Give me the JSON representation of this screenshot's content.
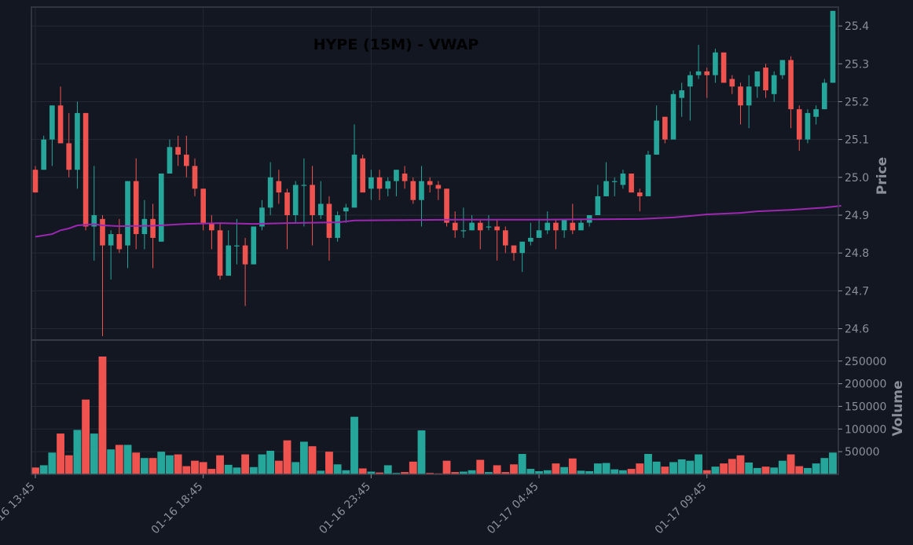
{
  "colors": {
    "background": "#131722",
    "panel_border": "#3b3f4a",
    "grid": "#242834",
    "up": "#26a69a",
    "down": "#ef5350",
    "vwap": "#9c27b0",
    "text": "#8a8f9a",
    "title": "#000000"
  },
  "chart_data": {
    "type": "candlestick",
    "title": "HYPE (15M) - VWAP",
    "price_axis": {
      "label": "Price",
      "ylim": [
        24.57,
        25.45
      ],
      "ticks": [
        "24.6",
        "24.7",
        "24.8",
        "24.9",
        "25.0",
        "25.1",
        "25.2",
        "25.3",
        "25.4"
      ]
    },
    "volume_axis": {
      "label": "Volume",
      "ylim": [
        0,
        260000
      ],
      "ticks": [
        "50000",
        "100000",
        "150000",
        "200000",
        "250000"
      ]
    },
    "x_ticks": [
      {
        "index": 0,
        "label": "01-16 13:45"
      },
      {
        "index": 20,
        "label": "01-16 18:45"
      },
      {
        "index": 40,
        "label": "01-16 23:45"
      },
      {
        "index": 60,
        "label": "01-17 04:45"
      },
      {
        "index": 80,
        "label": "01-17 09:45"
      }
    ],
    "grid": true,
    "candles": [
      [
        25.02,
        24.96,
        25.03,
        24.96
      ],
      [
        25.02,
        25.1,
        25.11,
        25.02
      ],
      [
        25.1,
        25.19,
        25.19,
        25.03
      ],
      [
        25.19,
        25.09,
        25.24,
        25.09
      ],
      [
        25.09,
        25.02,
        25.17,
        25.0
      ],
      [
        25.02,
        25.17,
        25.2,
        24.97
      ],
      [
        25.17,
        24.87,
        25.17,
        24.86
      ],
      [
        24.87,
        24.9,
        25.03,
        24.78
      ],
      [
        24.89,
        24.82,
        24.9,
        24.58
      ],
      [
        24.82,
        24.85,
        24.86,
        24.73
      ],
      [
        24.85,
        24.81,
        24.89,
        24.8
      ],
      [
        24.82,
        24.99,
        24.99,
        24.76
      ],
      [
        24.99,
        24.85,
        25.05,
        24.81
      ],
      [
        24.85,
        24.89,
        24.94,
        24.81
      ],
      [
        24.89,
        24.84,
        24.93,
        24.76
      ],
      [
        24.83,
        25.01,
        25.01,
        24.83
      ],
      [
        25.01,
        25.08,
        25.1,
        25.01
      ],
      [
        25.08,
        25.06,
        25.11,
        25.03
      ],
      [
        25.06,
        25.03,
        25.11,
        25.0
      ],
      [
        25.03,
        24.97,
        25.05,
        24.95
      ],
      [
        24.97,
        24.88,
        24.97,
        24.86
      ],
      [
        24.88,
        24.86,
        24.9,
        24.81
      ],
      [
        24.86,
        24.74,
        24.88,
        24.73
      ],
      [
        24.74,
        24.82,
        24.86,
        24.74
      ],
      [
        24.82,
        24.82,
        24.89,
        24.77
      ],
      [
        24.82,
        24.77,
        24.84,
        24.66
      ],
      [
        24.77,
        24.87,
        24.87,
        24.77
      ],
      [
        24.87,
        24.92,
        24.94,
        24.86
      ],
      [
        24.92,
        25.0,
        25.04,
        24.9
      ],
      [
        24.99,
        24.96,
        25.02,
        24.93
      ],
      [
        24.96,
        24.9,
        24.97,
        24.81
      ],
      [
        24.9,
        24.98,
        24.99,
        24.88
      ],
      [
        24.98,
        24.98,
        25.05,
        24.87
      ],
      [
        24.98,
        24.9,
        25.03,
        24.82
      ],
      [
        24.9,
        24.93,
        24.99,
        24.89
      ],
      [
        24.93,
        24.84,
        24.95,
        24.78
      ],
      [
        24.84,
        24.9,
        24.91,
        24.83
      ],
      [
        24.91,
        24.92,
        24.93,
        24.88
      ],
      [
        24.92,
        25.06,
        25.14,
        24.92
      ],
      [
        25.05,
        24.96,
        25.06,
        24.96
      ],
      [
        24.97,
        25.0,
        25.02,
        24.94
      ],
      [
        25.0,
        24.97,
        25.02,
        24.94
      ],
      [
        24.97,
        24.99,
        25.0,
        24.95
      ],
      [
        24.99,
        25.02,
        25.02,
        24.95
      ],
      [
        25.01,
        24.99,
        25.03,
        24.97
      ],
      [
        24.99,
        24.94,
        25.0,
        24.93
      ],
      [
        24.94,
        24.99,
        25.03,
        24.87
      ],
      [
        24.99,
        24.98,
        25.0,
        24.96
      ],
      [
        24.98,
        24.97,
        24.99,
        24.94
      ],
      [
        24.97,
        24.88,
        24.97,
        24.87
      ],
      [
        24.88,
        24.86,
        24.91,
        24.84
      ],
      [
        24.86,
        24.86,
        24.92,
        24.84
      ],
      [
        24.86,
        24.88,
        24.9,
        24.86
      ],
      [
        24.88,
        24.86,
        24.89,
        24.81
      ],
      [
        24.87,
        24.87,
        24.9,
        24.86
      ],
      [
        24.87,
        24.86,
        24.89,
        24.78
      ],
      [
        24.86,
        24.82,
        24.87,
        24.8
      ],
      [
        24.82,
        24.8,
        24.82,
        24.78
      ],
      [
        24.8,
        24.83,
        24.83,
        24.75
      ],
      [
        24.83,
        24.84,
        24.88,
        24.82
      ],
      [
        24.84,
        24.86,
        24.89,
        24.85
      ],
      [
        24.86,
        24.88,
        24.91,
        24.85
      ],
      [
        24.88,
        24.86,
        24.89,
        24.81
      ],
      [
        24.86,
        24.89,
        24.89,
        24.84
      ],
      [
        24.88,
        24.86,
        24.93,
        24.85
      ],
      [
        24.86,
        24.88,
        24.89,
        24.86
      ],
      [
        24.88,
        24.9,
        24.9,
        24.87
      ],
      [
        24.9,
        24.95,
        24.98,
        24.9
      ],
      [
        24.95,
        24.99,
        25.04,
        24.95
      ],
      [
        24.99,
        24.99,
        25.0,
        24.95
      ],
      [
        24.98,
        25.01,
        25.02,
        24.97
      ],
      [
        25.01,
        24.96,
        25.01,
        24.96
      ],
      [
        24.96,
        24.95,
        24.97,
        24.91
      ],
      [
        24.95,
        25.06,
        25.07,
        24.95
      ],
      [
        25.06,
        25.15,
        25.19,
        25.06
      ],
      [
        25.16,
        25.1,
        25.16,
        25.09
      ],
      [
        25.1,
        25.22,
        25.23,
        25.1
      ],
      [
        25.21,
        25.23,
        25.25,
        25.16
      ],
      [
        25.24,
        25.27,
        25.28,
        25.15
      ],
      [
        25.27,
        25.28,
        25.35,
        25.26
      ],
      [
        25.28,
        25.27,
        25.29,
        25.21
      ],
      [
        25.27,
        25.33,
        25.34,
        25.25
      ],
      [
        25.33,
        25.25,
        25.33,
        25.25
      ],
      [
        25.26,
        25.24,
        25.27,
        25.22
      ],
      [
        25.24,
        25.19,
        25.25,
        25.14
      ],
      [
        25.19,
        25.24,
        25.27,
        25.13
      ],
      [
        25.24,
        25.28,
        25.28,
        25.21
      ],
      [
        25.29,
        25.23,
        25.3,
        25.21
      ],
      [
        25.22,
        25.27,
        25.28,
        25.2
      ],
      [
        25.27,
        25.31,
        25.31,
        25.26
      ],
      [
        25.31,
        25.18,
        25.32,
        25.13
      ],
      [
        25.18,
        25.1,
        25.19,
        25.07
      ],
      [
        25.1,
        25.17,
        25.18,
        25.09
      ],
      [
        25.16,
        25.18,
        25.19,
        25.14
      ],
      [
        25.18,
        25.25,
        25.26,
        25.18
      ],
      [
        25.25,
        25.44,
        25.44,
        25.25
      ]
    ],
    "volume": [
      15000,
      20000,
      48000,
      90000,
      42000,
      98000,
      165000,
      90000,
      260000,
      55000,
      65000,
      65000,
      48000,
      36000,
      36000,
      50000,
      42000,
      44000,
      18000,
      30000,
      27000,
      12000,
      42000,
      21000,
      15000,
      44000,
      16000,
      44000,
      52000,
      30000,
      75000,
      27000,
      72000,
      62000,
      8000,
      50000,
      22000,
      9000,
      127000,
      13000,
      6000,
      4000,
      20000,
      3000,
      5000,
      28000,
      97000,
      3000,
      2000,
      30000,
      5000,
      6000,
      9000,
      32000,
      5000,
      20000,
      5000,
      22000,
      45000,
      12000,
      7000,
      9000,
      24000,
      16000,
      35000,
      8000,
      7000,
      24000,
      25000,
      11000,
      9000,
      12000,
      24000,
      45000,
      28000,
      17000,
      27000,
      33000,
      30000,
      44000,
      9000,
      17000,
      24000,
      34000,
      42000,
      26000,
      14000,
      17000,
      15000,
      30000,
      44000,
      18000,
      14000,
      24000,
      36000,
      48000
    ],
    "vwap": [
      {
        "i": 0,
        "v": 24.843
      },
      {
        "i": 2,
        "v": 24.85
      },
      {
        "i": 3,
        "v": 24.86
      },
      {
        "i": 4,
        "v": 24.865
      },
      {
        "i": 5,
        "v": 24.873
      },
      {
        "i": 7,
        "v": 24.876
      },
      {
        "i": 8,
        "v": 24.873
      },
      {
        "i": 10,
        "v": 24.871
      },
      {
        "i": 14,
        "v": 24.872
      },
      {
        "i": 18,
        "v": 24.877
      },
      {
        "i": 22,
        "v": 24.879
      },
      {
        "i": 26,
        "v": 24.877
      },
      {
        "i": 30,
        "v": 24.879
      },
      {
        "i": 36,
        "v": 24.881
      },
      {
        "i": 38,
        "v": 24.886
      },
      {
        "i": 44,
        "v": 24.887
      },
      {
        "i": 50,
        "v": 24.888
      },
      {
        "i": 60,
        "v": 24.888
      },
      {
        "i": 66,
        "v": 24.889
      },
      {
        "i": 72,
        "v": 24.89
      },
      {
        "i": 76,
        "v": 24.894
      },
      {
        "i": 78,
        "v": 24.898
      },
      {
        "i": 80,
        "v": 24.902
      },
      {
        "i": 84,
        "v": 24.906
      },
      {
        "i": 86,
        "v": 24.91
      },
      {
        "i": 90,
        "v": 24.914
      },
      {
        "i": 92,
        "v": 24.917
      },
      {
        "i": 94,
        "v": 24.92
      },
      {
        "i": 96,
        "v": 24.925
      }
    ]
  }
}
